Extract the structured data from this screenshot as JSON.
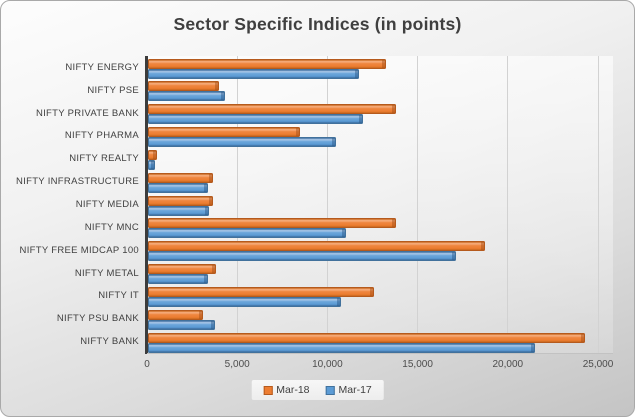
{
  "chart": {
    "title": "Sector Specific Indices (in points)"
  },
  "chart_data": {
    "type": "bar",
    "orientation": "horizontal",
    "title": "Sector Specific Indices (in points)",
    "categories": [
      "NIFTY ENERGY",
      "NIFTY PSE",
      "NIFTY PRIVATE BANK",
      "NIFTY PHARMA",
      "NIFTY REALTY",
      "NIFTY INFRASTRUCTURE",
      "NIFTY MEDIA",
      "NIFTY MNC",
      "NIFTY FREE MIDCAP 100",
      "NIFTY METAL",
      "NIFTY IT",
      "NIFTY PSU BANK",
      "NIFTY BANK"
    ],
    "series": [
      {
        "name": "Mar-18",
        "color": "#ED7D31",
        "values": [
          13200,
          3950,
          13750,
          8400,
          500,
          3600,
          3600,
          13750,
          18700,
          3750,
          12500,
          3050,
          24250
        ]
      },
      {
        "name": "Mar-17",
        "color": "#5B9BD5",
        "values": [
          11700,
          4250,
          11900,
          10400,
          400,
          3300,
          3400,
          11000,
          17100,
          3300,
          10700,
          3700,
          21450
        ]
      }
    ],
    "x_ticks": [
      "0",
      "5,000",
      "10,000",
      "15,000",
      "20,000",
      "25,000"
    ],
    "x_tick_values": [
      0,
      5000,
      10000,
      15000,
      20000,
      25000
    ],
    "xlim": [
      0,
      25000
    ],
    "grid": true,
    "legend_position": "bottom",
    "colors": {
      "title_text": "#3F3F3F",
      "axis_text": "#4D4D4D",
      "series_mar18": "#ED7D31",
      "series_mar17": "#5B9BD5",
      "background_top": "#FDFDFD",
      "background_bottom": "#C4C4C4"
    }
  }
}
